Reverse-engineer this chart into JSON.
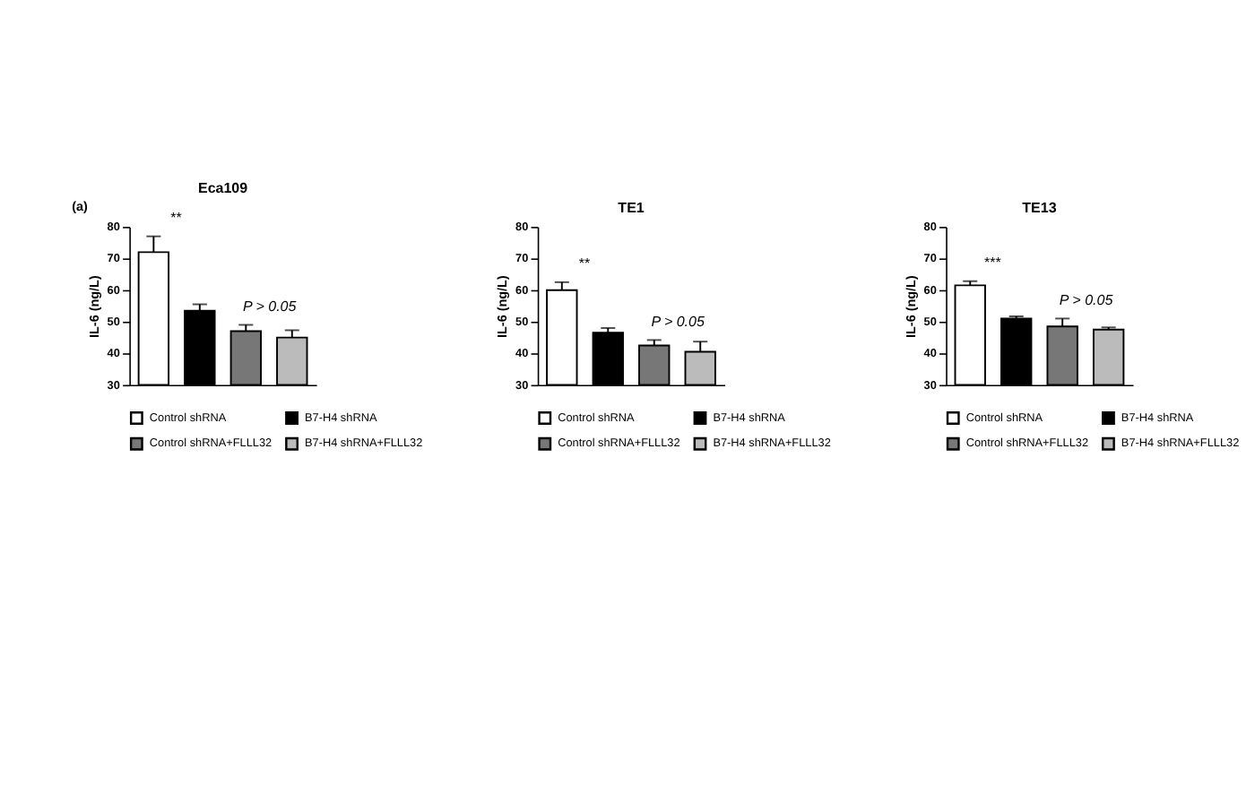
{
  "chart_data": [
    {
      "type": "bar",
      "title": "Eca109",
      "ylabel": "IL-6 (ng/L)",
      "categories": [
        null
      ],
      "ylim": [
        30,
        80
      ],
      "yticks": [
        30,
        40,
        50,
        60,
        70,
        80
      ],
      "legend": "bottom",
      "grid": false,
      "annotations": [
        "(a)",
        "**",
        "P > 0.05"
      ],
      "series": [
        {
          "name": "Control shRNA",
          "color": "#ffffff",
          "values": [
            72
          ],
          "errors": [
            [
              72,
              77
            ]
          ]
        },
        {
          "name": "B7-H4 shRNA",
          "color": "#000000",
          "values": [
            53.5
          ],
          "errors": [
            [
              53.5,
              55.5
            ]
          ]
        },
        {
          "name": "Control shRNA+FLLL32",
          "color": "#777777",
          "values": [
            47
          ],
          "errors": [
            [
              47,
              49
            ]
          ]
        },
        {
          "name": "B7-H4 shRNA+FLLL32",
          "color": "#bbbbbb",
          "values": [
            45
          ],
          "errors": [
            [
              45,
              47.3
            ]
          ]
        }
      ]
    },
    {
      "type": "bar",
      "title": "TE1",
      "ylabel": "IL-6 (ng/L)",
      "categories": [
        null
      ],
      "ylim": [
        30,
        80
      ],
      "yticks": [
        30,
        40,
        50,
        60,
        70,
        80
      ],
      "legend": "bottom",
      "grid": false,
      "annotations": [
        "**",
        "P > 0.05"
      ],
      "series": [
        {
          "name": "Control shRNA",
          "color": "#ffffff",
          "values": [
            60
          ],
          "errors": [
            [
              60,
              62.5
            ]
          ]
        },
        {
          "name": "B7-H4 shRNA",
          "color": "#000000",
          "values": [
            46.5
          ],
          "errors": [
            [
              46.5,
              48
            ]
          ]
        },
        {
          "name": "Control shRNA+FLLL32",
          "color": "#777777",
          "values": [
            42.5
          ],
          "errors": [
            [
              42.5,
              44.2
            ]
          ]
        },
        {
          "name": "B7-H4 shRNA+FLLL32",
          "color": "#bbbbbb",
          "values": [
            40.5
          ],
          "errors": [
            [
              40.5,
              43.7
            ]
          ]
        }
      ]
    },
    {
      "type": "bar",
      "title": "TE13",
      "ylabel": "IL-6 (ng/L)",
      "categories": [
        null
      ],
      "ylim": [
        30,
        80
      ],
      "yticks": [
        30,
        40,
        50,
        60,
        70,
        80
      ],
      "legend": "bottom",
      "grid": false,
      "annotations": [
        "***",
        "P > 0.05"
      ],
      "series": [
        {
          "name": "Control shRNA",
          "color": "#ffffff",
          "values": [
            61.5
          ],
          "errors": [
            [
              61.5,
              62.8
            ]
          ]
        },
        {
          "name": "B7-H4 shRNA",
          "color": "#000000",
          "values": [
            51
          ],
          "errors": [
            [
              51,
              51.7
            ]
          ]
        },
        {
          "name": "Control shRNA+FLLL32",
          "color": "#777777",
          "values": [
            48.5
          ],
          "errors": [
            [
              48.5,
              51
            ]
          ]
        },
        {
          "name": "B7-H4 shRNA+FLLL32",
          "color": "#bbbbbb",
          "values": [
            47.5
          ],
          "errors": [
            [
              47.5,
              48.2
            ]
          ]
        }
      ]
    }
  ]
}
